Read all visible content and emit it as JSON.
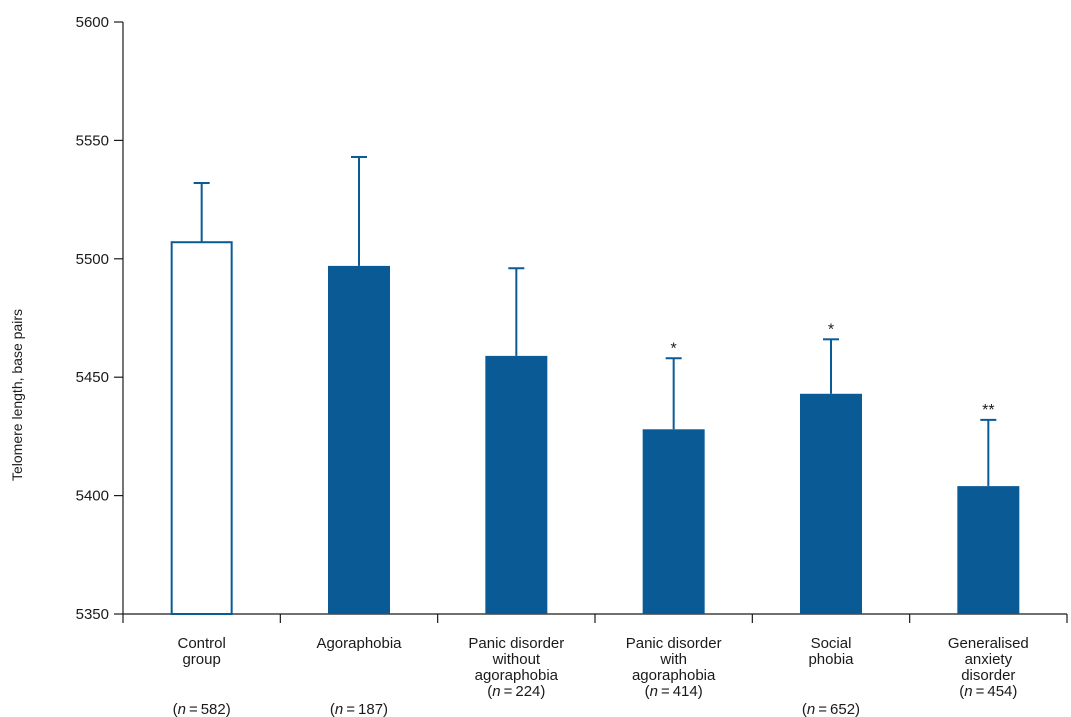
{
  "chart_data": {
    "type": "bar",
    "title": "",
    "xlabel": "",
    "ylabel": "Telomere length, base pairs",
    "ylim": [
      5350,
      5600
    ],
    "yticks": [
      5350,
      5400,
      5450,
      5500,
      5550,
      5600
    ],
    "grid": false,
    "legend": "none",
    "categories": [
      {
        "lines": [
          "Control",
          "group"
        ],
        "n": "582",
        "value": 5507,
        "error_upper": 5532,
        "significance": "",
        "fill": "#ffffff",
        "stroke": "#0a5a96"
      },
      {
        "lines": [
          "Agoraphobia"
        ],
        "n": "187",
        "value": 5497,
        "error_upper": 5543,
        "significance": "",
        "fill": "#0a5a96",
        "stroke": "#0a5a96"
      },
      {
        "lines": [
          "Panic disorder",
          "without",
          "agoraphobia"
        ],
        "n": "224",
        "value": 5459,
        "error_upper": 5496,
        "significance": "",
        "fill": "#0a5a96",
        "stroke": "#0a5a96"
      },
      {
        "lines": [
          "Panic disorder",
          "with",
          "agoraphobia"
        ],
        "n": "414",
        "value": 5428,
        "error_upper": 5458,
        "significance": "*",
        "fill": "#0a5a96",
        "stroke": "#0a5a96"
      },
      {
        "lines": [
          "Social",
          "phobia"
        ],
        "n": "652",
        "value": 5443,
        "error_upper": 5466,
        "significance": "*",
        "fill": "#0a5a96",
        "stroke": "#0a5a96"
      },
      {
        "lines": [
          "Generalised",
          "anxiety",
          "disorder"
        ],
        "n": "454",
        "value": 5404,
        "error_upper": 5432,
        "significance": "**",
        "fill": "#0a5a96",
        "stroke": "#0a5a96"
      }
    ],
    "colors": {
      "bar": "#0a5a96",
      "axis": "#1a1a1a"
    }
  }
}
